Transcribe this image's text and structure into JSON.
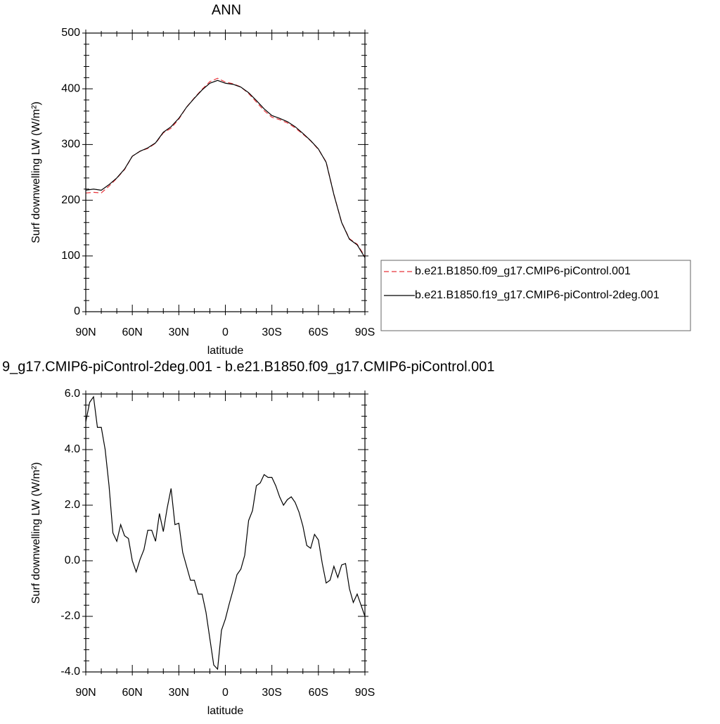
{
  "chart_data": [
    {
      "type": "line",
      "title": "ANN",
      "ylabel": "Surf downwelling LW (W/m²)",
      "xlabel": "latitude",
      "x": [
        90,
        85,
        80,
        75,
        70,
        65,
        60,
        55,
        50,
        45,
        40,
        35,
        30,
        25,
        20,
        15,
        10,
        5,
        0,
        -5,
        -10,
        -15,
        -20,
        -25,
        -30,
        -35,
        -40,
        -45,
        -50,
        -55,
        -60,
        -65,
        -70,
        -75,
        -80,
        -85,
        -90
      ],
      "series": [
        {
          "name": "b.e21.B1850.f09_g17.CMIP6-piControl.001",
          "color": "#e8343a",
          "dash": true,
          "values": [
            213,
            214.2,
            213.2,
            225.3,
            239.3,
            255.1,
            279,
            287.95,
            292.9,
            302.3,
            320.95,
            329.4,
            345.65,
            367.2,
            383.7,
            399.2,
            412.8,
            418.9,
            412.1,
            409.05,
            403.3,
            391.55,
            376.3,
            360.9,
            349,
            344.7,
            338.8,
            329.9,
            318.75,
            306.55,
            291.25,
            268.8,
            210.2,
            160.15,
            131,
            121.2,
            99
          ]
        },
        {
          "name": "b.e21.B1850.f19_g17.CMIP6-piControl-2deg.001",
          "color": "#000000",
          "dash": false,
          "values": [
            218,
            220,
            218,
            228,
            240,
            256,
            279,
            288,
            294,
            303,
            322,
            332,
            347,
            367,
            383,
            398,
            410,
            415,
            410,
            408,
            403,
            393,
            379,
            364,
            352,
            347,
            341,
            332,
            320,
            307,
            292,
            268,
            210,
            160,
            130,
            120,
            97
          ]
        }
      ],
      "xlim": [
        90,
        -90
      ],
      "xticks": [
        {
          "value": 90,
          "label": "90N"
        },
        {
          "value": 60,
          "label": "60N"
        },
        {
          "value": 30,
          "label": "30N"
        },
        0,
        {
          "value": -30,
          "label": "30S"
        },
        {
          "value": -60,
          "label": "60S"
        },
        {
          "value": -90,
          "label": "90S"
        }
      ],
      "xminorticks": [
        80,
        70,
        50,
        40,
        20,
        10,
        -10,
        -20,
        -40,
        -50,
        -70,
        -80
      ],
      "ylim": [
        0,
        500
      ],
      "yticks": [
        0,
        100,
        200,
        300,
        400,
        500
      ],
      "yminorticks": [
        20,
        40,
        60,
        80,
        120,
        140,
        160,
        180,
        220,
        240,
        260,
        280,
        320,
        340,
        360,
        380,
        420,
        440,
        460,
        480
      ],
      "legend": "right"
    },
    {
      "type": "line",
      "title": "9_g17.CMIP6-piControl-2deg.001 - b.e21.B1850.f09_g17.CMIP6-piControl.001",
      "ylabel": "Surf downwelling LW (W/m²)",
      "xlabel": "latitude",
      "x": [
        90,
        87.5,
        85,
        82.5,
        80,
        77.5,
        75,
        72.5,
        70,
        67.5,
        65,
        62.5,
        60,
        57.5,
        55,
        52.5,
        50,
        47.5,
        45,
        42.5,
        40,
        37.5,
        35,
        32.5,
        30,
        27.5,
        25,
        22.5,
        20,
        17.5,
        15,
        12.5,
        10,
        7.5,
        5,
        2.5,
        0,
        -2.5,
        -5,
        -7.5,
        -10,
        -12.5,
        -15,
        -17.5,
        -20,
        -22.5,
        -25,
        -27.5,
        -30,
        -32.5,
        -35,
        -37.5,
        -40,
        -42.5,
        -45,
        -47.5,
        -50,
        -52.5,
        -55,
        -57.5,
        -60,
        -62.5,
        -65,
        -67.5,
        -70,
        -72.5,
        -75,
        -77.5,
        -80,
        -82.5,
        -85,
        -87.5,
        -90
      ],
      "series": [
        {
          "name": null,
          "color": "#000000",
          "dash": false,
          "values": [
            5.0,
            5.7,
            5.9,
            4.8,
            4.8,
            4.0,
            2.7,
            1.0,
            0.7,
            1.3,
            0.9,
            0.8,
            0.0,
            -0.4,
            0.05,
            0.4,
            1.1,
            1.1,
            0.7,
            1.7,
            1.05,
            1.9,
            2.6,
            1.3,
            1.35,
            0.3,
            -0.2,
            -0.7,
            -0.7,
            -1.2,
            -1.2,
            -1.85,
            -2.8,
            -3.75,
            -3.9,
            -2.5,
            -2.1,
            -1.55,
            -1.05,
            -0.5,
            -0.3,
            0.2,
            1.45,
            1.8,
            2.7,
            2.8,
            3.1,
            3.0,
            3.0,
            2.7,
            2.3,
            2.0,
            2.2,
            2.3,
            2.1,
            1.75,
            1.25,
            0.55,
            0.45,
            0.95,
            0.75,
            -0.1,
            -0.8,
            -0.7,
            -0.2,
            -0.6,
            -0.15,
            -0.1,
            -1.0,
            -1.5,
            -1.2,
            -1.6,
            -2.0
          ]
        }
      ],
      "xlim": [
        90,
        -90
      ],
      "xticks": [
        {
          "value": 90,
          "label": "90N"
        },
        {
          "value": 60,
          "label": "60N"
        },
        {
          "value": 30,
          "label": "30N"
        },
        0,
        {
          "value": -30,
          "label": "30S"
        },
        {
          "value": -60,
          "label": "60S"
        },
        {
          "value": -90,
          "label": "90S"
        }
      ],
      "xminorticks": [
        80,
        70,
        50,
        40,
        20,
        10,
        -10,
        -20,
        -40,
        -50,
        -70,
        -80
      ],
      "ylim": [
        -4,
        6
      ],
      "yticks": [
        {
          "value": -4,
          "label": "-4.0"
        },
        {
          "value": -2,
          "label": "-2.0"
        },
        {
          "value": 0,
          "label": "0.0"
        },
        {
          "value": 2,
          "label": "2.0"
        },
        {
          "value": 4,
          "label": "4.0"
        },
        {
          "value": 6,
          "label": "6.0"
        }
      ],
      "yminorticks": [
        -3.6,
        -3.2,
        -2.8,
        -2.4,
        -1.6,
        -1.2,
        -0.8,
        -0.4,
        0.4,
        0.8,
        1.2,
        1.6,
        2.4,
        2.8,
        3.2,
        3.6,
        4.4,
        4.8,
        5.2,
        5.6
      ]
    }
  ]
}
